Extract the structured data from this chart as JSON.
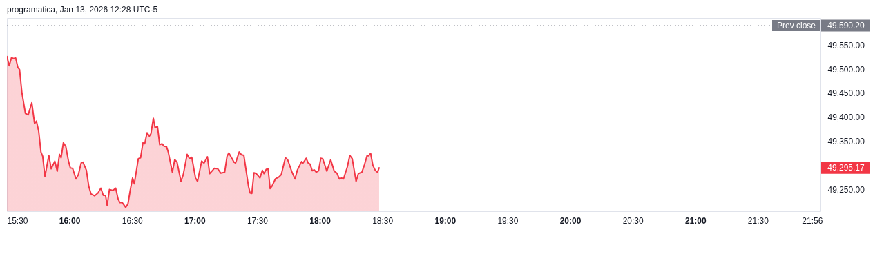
{
  "chart_data": {
    "type": "area",
    "annotations": [
      "programatica, Jan 13, 2026 12:28 UTC-5",
      "49,590.20",
      "49,295.17"
    ],
    "xlim": [
      15.5,
      22.0
    ],
    "ylim": [
      49205,
      49606
    ],
    "xticks": [
      {
        "value": 15.5,
        "label": "15:30"
      },
      {
        "value": 16,
        "label": "16:00"
      },
      {
        "value": 16.5,
        "label": "16:30"
      },
      {
        "value": 17,
        "label": "17:00"
      },
      {
        "value": 17.5,
        "label": "17:30"
      },
      {
        "value": 18,
        "label": "18:00"
      },
      {
        "value": 18.5,
        "label": "18:30"
      },
      {
        "value": 19,
        "label": "19:00"
      },
      {
        "value": 19.5,
        "label": "19:30"
      },
      {
        "value": 20,
        "label": "20:00"
      },
      {
        "value": 20.5,
        "label": "20:30"
      },
      {
        "value": 21,
        "label": "21:00"
      },
      {
        "value": 21.5,
        "label": "21:30"
      },
      {
        "value": 21.933,
        "label": "21:56"
      }
    ],
    "yticks": [
      {
        "value": 49250,
        "label": "49,250.00"
      },
      {
        "value": 49350,
        "label": "49,350.00"
      },
      {
        "value": 49400,
        "label": "49,400.00"
      },
      {
        "value": 49450,
        "label": "49,450.00"
      },
      {
        "value": 49500,
        "label": "49,500.00"
      },
      {
        "value": 49550,
        "label": "49,550.00"
      }
    ],
    "grid": false,
    "ref_lines": [
      {
        "axis": "y",
        "value": 49590.2,
        "label": "Prev close",
        "color": "#787b86",
        "line_style": "dotted"
      }
    ],
    "x": [
      15.5,
      15.518,
      15.537,
      15.551,
      15.57,
      15.588,
      15.601,
      15.62,
      15.648,
      15.67,
      15.699,
      15.721,
      15.736,
      15.754,
      15.772,
      15.786,
      15.804,
      15.835,
      15.854,
      15.883,
      15.902,
      15.92,
      15.933,
      15.951,
      15.97,
      15.992,
      16.007,
      16.025,
      16.052,
      16.071,
      16.093,
      16.108,
      16.135,
      16.154,
      16.172,
      16.2,
      16.228,
      16.251,
      16.27,
      16.288,
      16.301,
      16.319,
      16.347,
      16.369,
      16.388,
      16.402,
      16.421,
      16.449,
      16.467,
      16.485,
      16.504,
      16.518,
      16.55,
      16.568,
      16.587,
      16.601,
      16.62,
      16.638,
      16.651,
      16.67,
      16.684,
      16.703,
      16.721,
      16.739,
      16.756,
      16.775,
      16.789,
      16.822,
      16.841,
      16.859,
      16.891,
      16.909,
      16.94,
      16.959,
      16.977,
      17.007,
      17.023,
      17.056,
      17.075,
      17.102,
      17.12,
      17.157,
      17.185,
      17.209,
      17.24,
      17.259,
      17.273,
      17.314,
      17.327,
      17.356,
      17.375,
      17.393,
      17.43,
      17.443,
      17.457,
      17.474,
      17.493,
      17.522,
      17.541,
      17.554,
      17.572,
      17.587,
      17.603,
      17.618,
      17.645,
      17.673,
      17.692,
      17.725,
      17.743,
      17.775,
      17.802,
      17.82,
      17.854,
      17.866,
      17.891,
      17.907,
      17.922,
      17.94,
      17.955,
      17.971,
      17.99,
      18.008,
      18.023,
      18.056,
      18.087,
      18.115,
      18.137,
      18.156,
      18.174,
      18.189,
      18.22,
      18.24,
      18.259,
      18.29,
      18.308,
      18.336,
      18.355,
      18.377,
      18.391,
      18.406,
      18.424,
      18.443,
      18.461,
      18.474
    ],
    "series": [
      {
        "color": "#f23645",
        "values": [
          49526,
          49507,
          49524,
          49522,
          49523,
          49503,
          49499,
          49451,
          49408,
          49405,
          49430,
          49387,
          49392,
          49371,
          49328,
          49319,
          49277,
          49321,
          49293,
          49309,
          49288,
          49323,
          49316,
          49347,
          49340,
          49309,
          49295,
          49294,
          49272,
          49281,
          49305,
          49307,
          49290,
          49257,
          49241,
          49237,
          49243,
          49253,
          49238,
          49238,
          49217,
          49250,
          49248,
          49253,
          49231,
          49223,
          49223,
          49213,
          49220,
          49248,
          49274,
          49262,
          49314,
          49316,
          49347,
          49345,
          49368,
          49361,
          49366,
          49398,
          49378,
          49381,
          49343,
          49345,
          49340,
          49339,
          49328,
          49286,
          49312,
          49307,
          49267,
          49281,
          49323,
          49314,
          49317,
          49274,
          49267,
          49309,
          49305,
          49318,
          49283,
          49294,
          49293,
          49284,
          49286,
          49319,
          49326,
          49307,
          49305,
          49328,
          49322,
          49321,
          49257,
          49243,
          49242,
          49285,
          49283,
          49274,
          49290,
          49283,
          49292,
          49293,
          49252,
          49257,
          49272,
          49276,
          49281,
          49316,
          49312,
          49288,
          49272,
          49290,
          49308,
          49305,
          49315,
          49305,
          49303,
          49289,
          49291,
          49286,
          49289,
          49315,
          49314,
          49288,
          49312,
          49288,
          49284,
          49272,
          49274,
          49272,
          49297,
          49321,
          49314,
          49267,
          49283,
          49286,
          49300,
          49320,
          49320,
          49325,
          49300,
          49290,
          49286,
          49295
        ]
      }
    ]
  }
}
